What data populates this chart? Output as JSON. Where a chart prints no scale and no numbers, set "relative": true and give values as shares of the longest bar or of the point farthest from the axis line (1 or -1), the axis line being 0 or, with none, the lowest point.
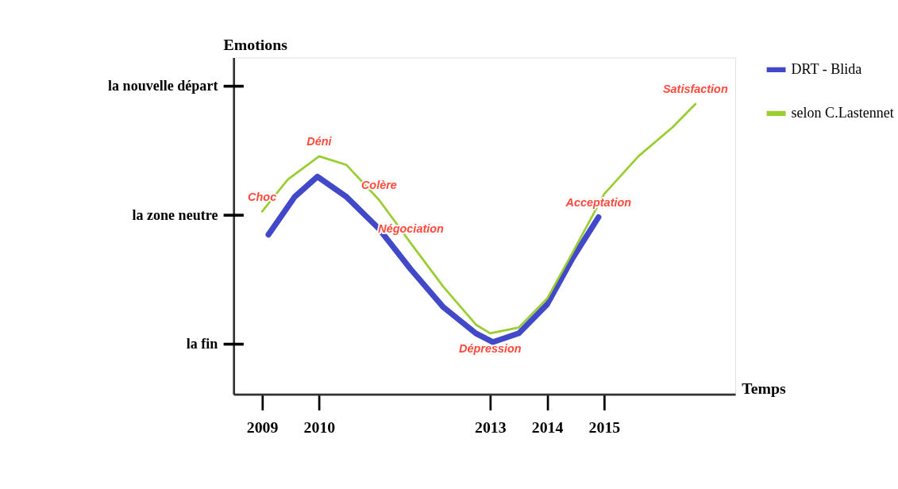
{
  "chart_data": {
    "type": "line",
    "xlabel": "Temps",
    "ylabel": "Emotions",
    "relative": true,
    "xlim": [
      2008.5,
      2017.3
    ],
    "xticks": [
      2009,
      2010,
      2013,
      2014,
      2015
    ],
    "series": [
      {
        "name": "DRT - Blida",
        "color": "#4149c9",
        "x": [
          2009.11,
          2009.57,
          2009.97,
          2010.48,
          2011.05,
          2011.61,
          2012.18,
          2012.75,
          2013.05,
          2013.5,
          2014.0,
          2014.45,
          2014.9
        ],
        "values": [
          0.55,
          0.68,
          0.75,
          0.68,
          0.57,
          0.43,
          0.3,
          0.21,
          0.18,
          0.21,
          0.31,
          0.47,
          0.61
        ]
      },
      {
        "name": "selon C.Lastennet",
        "color": "#9acd32",
        "x": [
          2009.0,
          2009.45,
          2010.0,
          2010.48,
          2011.05,
          2011.61,
          2012.18,
          2012.75,
          2013.0,
          2013.5,
          2014.0,
          2014.45,
          2015.0,
          2015.6,
          2016.2,
          2016.6
        ],
        "values": [
          0.63,
          0.74,
          0.82,
          0.79,
          0.67,
          0.52,
          0.37,
          0.24,
          0.21,
          0.23,
          0.33,
          0.49,
          0.69,
          0.82,
          0.92,
          1.0
        ]
      }
    ],
    "annotations": [
      "la nouvelle départ",
      "la zone neutre",
      "la fin",
      {
        "text": "Choc",
        "x": 2009.0,
        "y": 0.63
      },
      {
        "text": "Déni",
        "x": 2010.0,
        "y": 0.82
      },
      {
        "text": "Colère",
        "x": 2011.05,
        "y": 0.67
      },
      {
        "text": "Négociation",
        "x": 2011.61,
        "y": 0.52
      },
      {
        "text": "Dépression",
        "x": 2013.0,
        "y": 0.21
      },
      {
        "text": "Acceptation",
        "x": 2014.9,
        "y": 0.61
      },
      {
        "text": "Satisfaction",
        "x": 2016.6,
        "y": 1.0
      }
    ],
    "legend": "right",
    "grid": false,
    "marker": "none",
    "line_style": "solid"
  }
}
